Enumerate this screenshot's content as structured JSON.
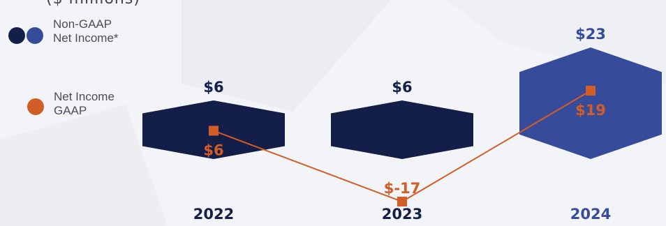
{
  "header_partial": "($ millions)",
  "legend": [
    {
      "label": "Non-GAAP\nNet Income*",
      "colors": [
        "#131f48",
        "#364c9b"
      ]
    },
    {
      "label": "Net Income\nGAAP",
      "colors": [
        "#d25d27"
      ]
    }
  ],
  "colors": {
    "dark_navy": "#131f48",
    "blue": "#364c9b",
    "orange": "#d25d27",
    "year_text": "#131f48",
    "year_text_latest": "#364c9b",
    "background": "#f3f4f7"
  },
  "chart_data": {
    "type": "bar",
    "categories": [
      "2022",
      "2023",
      "2024"
    ],
    "series": [
      {
        "name": "Non-GAAP Net Income*",
        "values": [
          6,
          6,
          23
        ],
        "labels": [
          "$6",
          "$6",
          "$23"
        ]
      },
      {
        "name": "Net Income GAAP",
        "values": [
          6,
          -17,
          19
        ],
        "labels": [
          "$6",
          "$-17",
          "$19"
        ]
      }
    ],
    "title": "",
    "xlabel": "",
    "ylabel": ""
  }
}
